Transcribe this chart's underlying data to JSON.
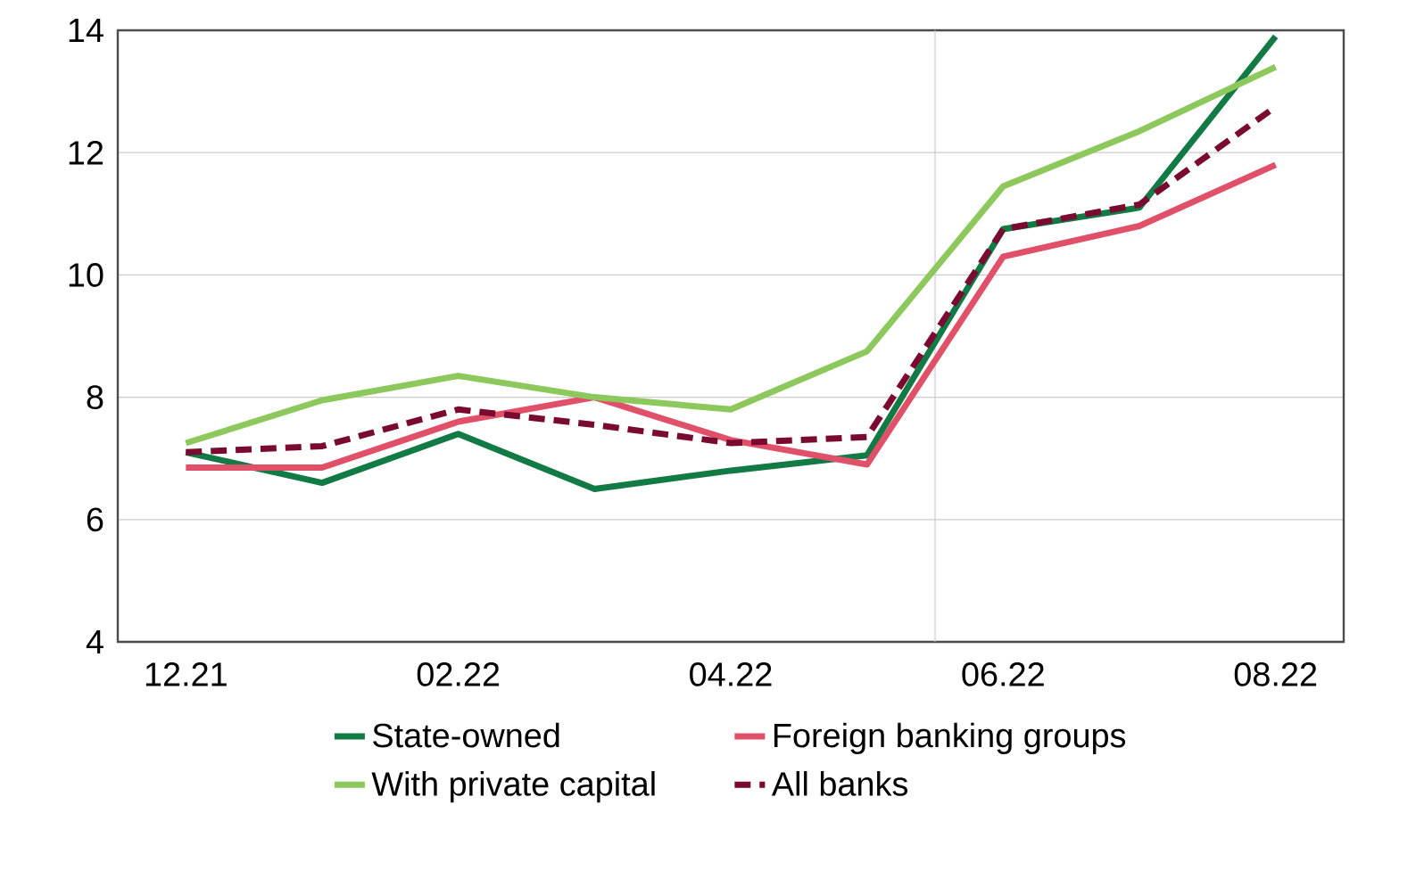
{
  "chart_data": {
    "type": "line",
    "categories": [
      "12.21",
      null,
      "02.22",
      null,
      "04.22",
      null,
      "06.22",
      null,
      "08.22"
    ],
    "series": [
      {
        "name": "State-owned",
        "color": "#117a45",
        "values": [
          7.1,
          6.6,
          7.4,
          6.5,
          6.8,
          7.05,
          10.75,
          11.1,
          13.9
        ]
      },
      {
        "name": "Foreign banking groups",
        "color": "#e05068",
        "values": [
          6.85,
          6.85,
          7.6,
          8.0,
          7.3,
          6.9,
          10.3,
          10.8,
          11.8
        ]
      },
      {
        "name": "With private capital",
        "color": "#8cc85c",
        "values": [
          7.25,
          7.95,
          8.35,
          8.0,
          7.8,
          8.75,
          11.45,
          12.35,
          13.4
        ]
      },
      {
        "name": "All banks",
        "color": "#7a0a30",
        "values": [
          7.1,
          7.2,
          7.8,
          7.55,
          7.25,
          7.35,
          10.75,
          11.15,
          12.75
        ],
        "line_style": "dashed"
      }
    ],
    "ylim": [
      4,
      14
    ],
    "yticks": [
      4,
      6,
      8,
      10,
      12,
      14
    ],
    "grid": "y",
    "legend": "bottom",
    "marker": "none",
    "line_style": "solid"
  }
}
